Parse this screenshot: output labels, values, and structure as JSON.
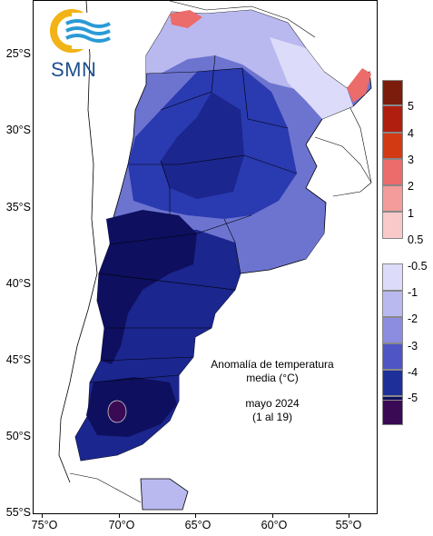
{
  "logo": {
    "text": "SMN",
    "icon": "smn-sun-waves-logo"
  },
  "caption": {
    "title_line1": "Anomalía de temperatura",
    "title_line2": "media (°C)",
    "period_line1": "mayo 2024",
    "period_line2": "(1 al 19)"
  },
  "axes": {
    "lat_labels": [
      "25°S",
      "30°S",
      "35°S",
      "40°S",
      "45°S",
      "50°S",
      "55°S"
    ],
    "lon_labels": [
      "75°O",
      "70°O",
      "65°O",
      "60°O",
      "55°O"
    ]
  },
  "legend": {
    "warm_labels": [
      "5",
      "4",
      "3",
      "2",
      "1",
      "0.5"
    ],
    "cold_labels": [
      "-0.5",
      "-1",
      "-2",
      "-3",
      "-4",
      "-5"
    ],
    "warm_colors": [
      "#7b1c0c",
      "#b01e10",
      "#d23a14",
      "#ec6b6b",
      "#f49b9b",
      "#f9c9c9"
    ],
    "cold_colors": [
      "#dcdcfa",
      "#b9b9f0",
      "#8c8ce0",
      "#4f55c4",
      "#1f2f9a",
      "#0e0f5e",
      "#3a0a55"
    ]
  },
  "colors": {
    "land_outline": "#000000",
    "neighbor_fill": "#ffffff"
  }
}
